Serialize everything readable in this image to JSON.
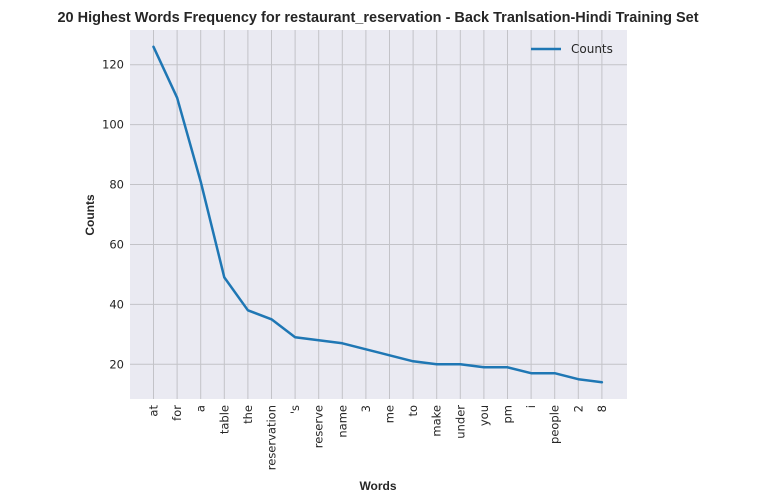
{
  "chart_data": {
    "type": "line",
    "title": "20 Highest Words Frequency for restaurant_reservation - Back Tranlsation-Hindi Training Set",
    "xlabel": "Words",
    "ylabel": "Counts",
    "categories": [
      "at",
      "for",
      "a",
      "table",
      "the",
      "reservation",
      "'s",
      "reserve",
      "name",
      "3",
      "me",
      "to",
      "make",
      "under",
      "you",
      "pm",
      "i",
      "people",
      "2",
      "8"
    ],
    "series": [
      {
        "name": "Counts",
        "values": [
          126,
          109,
          81,
          49,
          38,
          35,
          29,
          28,
          27,
          25,
          23,
          21,
          20,
          20,
          19,
          19,
          17,
          17,
          15,
          14
        ]
      }
    ],
    "ylim": [
      8.4,
      131.6
    ],
    "yticks": [
      20,
      40,
      60,
      80,
      100,
      120
    ],
    "grid": true,
    "legend": "top-right",
    "colors": {
      "line": "#1f77b4",
      "background": "#eaeaf2",
      "grid": "#c3c3c8"
    }
  }
}
